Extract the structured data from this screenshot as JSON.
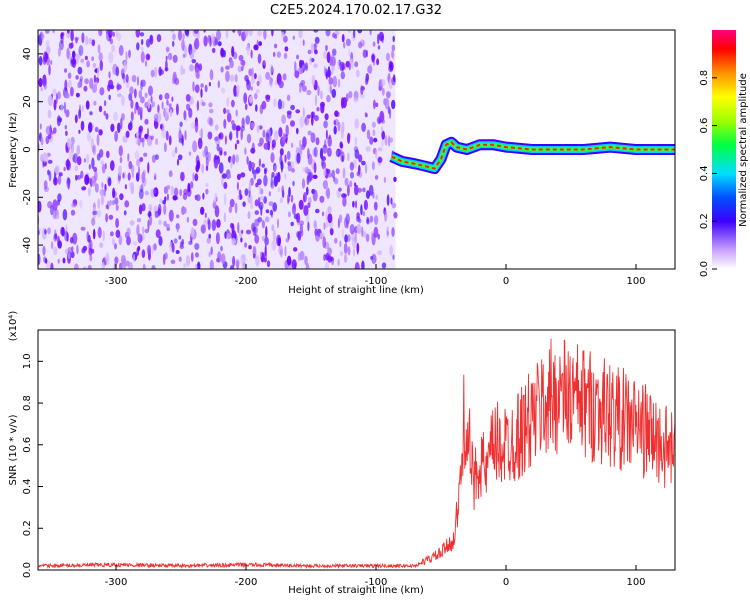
{
  "title": "C2E5.2024.170.02.17.G32",
  "chart_data": [
    {
      "type": "heatmap",
      "xlabel": "Height of straight line (km)",
      "ylabel": "Frequency (Hz)",
      "xlim": [
        -360,
        130
      ],
      "ylim": [
        -50,
        50
      ],
      "xticks": [
        -300,
        -200,
        -100,
        0,
        100
      ],
      "yticks": [
        -40,
        -20,
        0,
        20,
        40
      ],
      "noise_region_x": [
        -360,
        -85
      ],
      "signal_track": {
        "x": [
          -88,
          -80,
          -70,
          -62,
          -55,
          -50,
          -46,
          -42,
          -38,
          -30,
          -20,
          -10,
          0,
          20,
          40,
          60,
          80,
          100,
          120,
          130
        ],
        "frequency": [
          -3,
          -5,
          -6,
          -7,
          -8,
          -4,
          2,
          3,
          1,
          0,
          2,
          2,
          1,
          0,
          0,
          0,
          1,
          0,
          0,
          0
        ]
      },
      "colorbar": {
        "label": "Normalized spectral amplitude",
        "range": [
          0,
          1
        ],
        "ticks": [
          "0.0",
          "0.2",
          "0.4",
          "0.6",
          "0.8"
        ]
      }
    },
    {
      "type": "line",
      "xlabel": "Height of straight line (km)",
      "ylabel": "SNR (10 * v/v)",
      "y_multiplier_label": "(x10⁴)",
      "xlim": [
        -360,
        130
      ],
      "ylim": [
        0,
        1.15
      ],
      "xticks": [
        -300,
        -200,
        -100,
        0,
        100
      ],
      "yticks": [
        "0.0",
        "0.2",
        "0.4",
        "0.6",
        "0.8",
        "1.0"
      ],
      "series": [
        {
          "color": "#f03030",
          "x": [
            -360,
            -300,
            -250,
            -200,
            -150,
            -100,
            -70,
            -60,
            -50,
            -40,
            -35,
            -32,
            -30,
            -25,
            -20,
            -15,
            -10,
            0,
            10,
            20,
            30,
            40,
            50,
            60,
            70,
            80,
            90,
            100,
            110,
            120,
            130
          ],
          "y": [
            0.02,
            0.025,
            0.02,
            0.025,
            0.02,
            0.02,
            0.02,
            0.05,
            0.08,
            0.15,
            0.4,
            0.75,
            0.7,
            0.4,
            0.55,
            0.45,
            0.6,
            0.6,
            0.65,
            0.72,
            0.8,
            0.85,
            0.82,
            0.8,
            0.78,
            0.75,
            0.72,
            0.7,
            0.65,
            0.6,
            0.55
          ]
        }
      ]
    }
  ]
}
